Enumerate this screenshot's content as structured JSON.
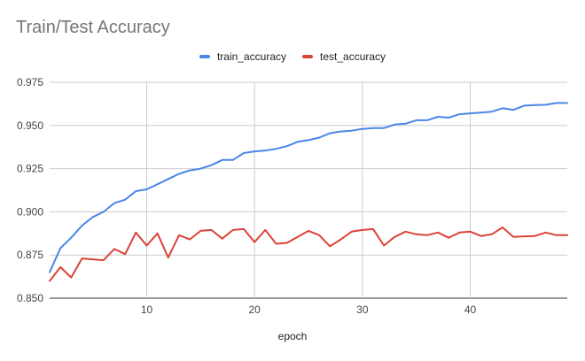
{
  "chart_data": {
    "type": "line",
    "title": "Train/Test Accuracy",
    "xlabel": "epoch",
    "ylabel": "",
    "xlim": [
      1,
      49
    ],
    "ylim": [
      0.85,
      0.975
    ],
    "xticks": [
      10,
      20,
      30,
      40
    ],
    "yticks": [
      0.85,
      0.875,
      0.9,
      0.925,
      0.95,
      0.975
    ],
    "ytick_labels": [
      "0.850",
      "0.875",
      "0.900",
      "0.925",
      "0.950",
      "0.975"
    ],
    "grid": true,
    "legend": "top-center",
    "x": [
      1,
      2,
      3,
      4,
      5,
      6,
      7,
      8,
      9,
      10,
      11,
      12,
      13,
      14,
      15,
      16,
      17,
      18,
      19,
      20,
      21,
      22,
      23,
      24,
      25,
      26,
      27,
      28,
      29,
      30,
      31,
      32,
      33,
      34,
      35,
      36,
      37,
      38,
      39,
      40,
      41,
      42,
      43,
      44,
      45,
      46,
      47,
      48,
      49
    ],
    "series": [
      {
        "name": "train_accuracy",
        "color": "#4a86e8",
        "values": [
          0.865,
          0.879,
          0.885,
          0.892,
          0.897,
          0.9,
          0.905,
          0.907,
          0.912,
          0.913,
          0.916,
          0.919,
          0.922,
          0.924,
          0.925,
          0.927,
          0.93,
          0.93,
          0.934,
          0.935,
          0.9355,
          0.9365,
          0.938,
          0.9405,
          0.9415,
          0.943,
          0.9455,
          0.9465,
          0.947,
          0.948,
          0.9485,
          0.9485,
          0.9505,
          0.951,
          0.953,
          0.953,
          0.955,
          0.9545,
          0.9565,
          0.957,
          0.9575,
          0.958,
          0.96,
          0.959,
          0.9615,
          0.9618,
          0.962,
          0.963,
          0.963
        ]
      },
      {
        "name": "test_accuracy",
        "color": "#db4437",
        "values": [
          0.86,
          0.868,
          0.862,
          0.873,
          0.8725,
          0.872,
          0.8785,
          0.8755,
          0.888,
          0.8805,
          0.8875,
          0.8735,
          0.8865,
          0.884,
          0.889,
          0.8895,
          0.8845,
          0.8895,
          0.89,
          0.8825,
          0.8895,
          0.8815,
          0.882,
          0.8855,
          0.889,
          0.8865,
          0.88,
          0.884,
          0.8885,
          0.8895,
          0.89,
          0.8805,
          0.8855,
          0.8885,
          0.887,
          0.8865,
          0.888,
          0.885,
          0.888,
          0.8885,
          0.886,
          0.887,
          0.891,
          0.8855,
          0.8858,
          0.886,
          0.888,
          0.8865,
          0.8865
        ]
      }
    ]
  }
}
